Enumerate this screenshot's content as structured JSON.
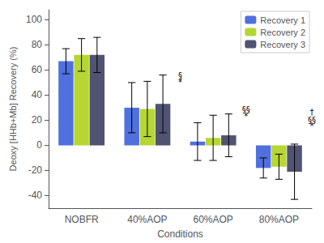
{
  "chart_data": {
    "type": "bar",
    "categories": [
      "NOBFR",
      "40%AOP",
      "60%AOP",
      "80%AOP"
    ],
    "series": [
      {
        "name": "Recovery 1",
        "values": [
          67,
          30,
          3,
          -18
        ],
        "errors_pos": [
          10,
          20,
          15,
          8
        ],
        "errors_neg": [
          10,
          20,
          15,
          8
        ]
      },
      {
        "name": "Recovery 2",
        "values": [
          72,
          29,
          6,
          -17
        ],
        "errors_pos": [
          13,
          22,
          18,
          10
        ],
        "errors_neg": [
          13,
          22,
          18,
          10
        ]
      },
      {
        "name": "Recovery 3",
        "values": [
          72,
          33,
          8,
          -21
        ],
        "errors_pos": [
          14,
          23,
          17,
          22
        ],
        "errors_neg": [
          14,
          23,
          17,
          22
        ]
      }
    ],
    "xlabel": "Conditions",
    "ylabel": "Deoxy [HHb+Mb] Recovery (%)",
    "ylim": [
      -50,
      108
    ],
    "yticks": [
      -40,
      -20,
      0,
      20,
      40,
      60,
      80,
      100
    ],
    "annotations": [
      {
        "text": "§",
        "category": "40%AOP",
        "y": 52
      },
      {
        "text": "*",
        "category": "40%AOP",
        "y": 47
      },
      {
        "text": "§§",
        "category": "60%AOP",
        "y": 25
      },
      {
        "text": "*",
        "category": "60%AOP",
        "y": 20
      },
      {
        "text": "†",
        "category": "80%AOP",
        "y": 23
      },
      {
        "text": "§§",
        "category": "80%AOP",
        "y": 17
      },
      {
        "text": "*",
        "category": "80%AOP",
        "y": 12
      }
    ],
    "legend": "upper right",
    "grid": false
  }
}
